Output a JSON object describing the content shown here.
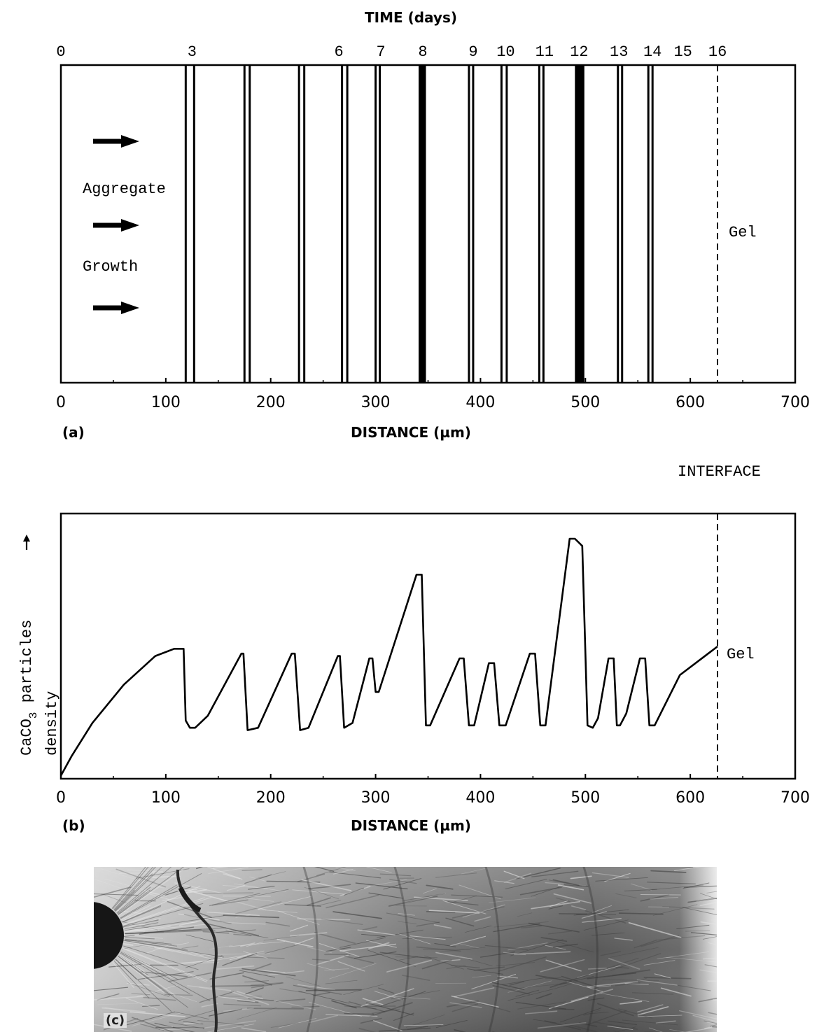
{
  "chart_data": [
    {
      "panel": "a",
      "type": "band-diagram",
      "top_axis_label": "TIME (days)",
      "bottom_axis_label": "DISTANCE (µm)",
      "panel_label": "(a)",
      "xlim": [
        0,
        700
      ],
      "x_ticks": [
        0,
        100,
        200,
        300,
        400,
        500,
        600,
        700
      ],
      "time_ticks": [
        {
          "label": "0",
          "position": 0
        },
        {
          "label": "3",
          "position": 125
        },
        {
          "label": "6",
          "position": 265
        },
        {
          "label": "7",
          "position": 305
        },
        {
          "label": "8",
          "position": 345
        },
        {
          "label": "9",
          "position": 393
        },
        {
          "label": "10",
          "position": 424
        },
        {
          "label": "11",
          "position": 461
        },
        {
          "label": "12",
          "position": 494
        },
        {
          "label": "13",
          "position": 532
        },
        {
          "label": "14",
          "position": 564
        },
        {
          "label": "15",
          "position": 593
        },
        {
          "label": "16",
          "position": 626
        }
      ],
      "bands": [
        {
          "x": [
            119,
            127
          ],
          "style": "double"
        },
        {
          "x": [
            175,
            180
          ],
          "style": "double"
        },
        {
          "x": [
            227,
            232
          ],
          "style": "double"
        },
        {
          "x": [
            268,
            273
          ],
          "style": "double"
        },
        {
          "x": [
            300,
            304
          ],
          "style": "double"
        },
        {
          "x": [
            341,
            348
          ],
          "style": "solid"
        },
        {
          "x": [
            389,
            393
          ],
          "style": "double"
        },
        {
          "x": [
            420,
            425
          ],
          "style": "double"
        },
        {
          "x": [
            456,
            460
          ],
          "style": "double"
        },
        {
          "x": [
            490,
            499
          ],
          "style": "solid"
        },
        {
          "x": [
            531,
            535
          ],
          "style": "double"
        },
        {
          "x": [
            560,
            564
          ],
          "style": "double"
        }
      ],
      "interface_x": 626,
      "text_labels": [
        "Aggregate",
        "Growth"
      ],
      "region_label": "Gel"
    },
    {
      "panel": "b",
      "type": "line",
      "panel_label": "(b)",
      "header": "INTERFACE",
      "xlabel": "DISTANCE (µm)",
      "ylabel": "CaCO3 particles",
      "ylabel_main": "CaCO",
      "ylabel_sub": "3",
      "ylabel_rest": " particles",
      "ylabel2": "density",
      "region_label": "Gel",
      "xlim": [
        0,
        700
      ],
      "ylim": [
        0,
        1
      ],
      "x_ticks": [
        0,
        100,
        200,
        300,
        400,
        500,
        600,
        700
      ],
      "interface_x": 626,
      "x": [
        0,
        10,
        30,
        60,
        90,
        108,
        117,
        119,
        123,
        128,
        140,
        172,
        174,
        178,
        188,
        220,
        223,
        228,
        236,
        264,
        266,
        270,
        278,
        294,
        297,
        300,
        303,
        339,
        344,
        348,
        352,
        380,
        384,
        389,
        394,
        408,
        413,
        418,
        424,
        447,
        452,
        457,
        462,
        485,
        490,
        497,
        502,
        507,
        512,
        522,
        527,
        530,
        533,
        539,
        552,
        557,
        561,
        566,
        590,
        626
      ],
      "y": [
        0.01,
        0.09,
        0.23,
        0.39,
        0.51,
        0.54,
        0.54,
        0.24,
        0.21,
        0.21,
        0.26,
        0.52,
        0.52,
        0.2,
        0.21,
        0.52,
        0.52,
        0.2,
        0.21,
        0.51,
        0.51,
        0.21,
        0.23,
        0.5,
        0.5,
        0.36,
        0.36,
        0.85,
        0.85,
        0.22,
        0.22,
        0.5,
        0.5,
        0.22,
        0.22,
        0.48,
        0.48,
        0.22,
        0.22,
        0.52,
        0.52,
        0.22,
        0.22,
        1.0,
        1.0,
        0.97,
        0.22,
        0.21,
        0.25,
        0.5,
        0.5,
        0.22,
        0.22,
        0.27,
        0.5,
        0.5,
        0.22,
        0.22,
        0.43,
        0.55
      ]
    }
  ],
  "panel_c": {
    "panel_label": "(c)"
  }
}
